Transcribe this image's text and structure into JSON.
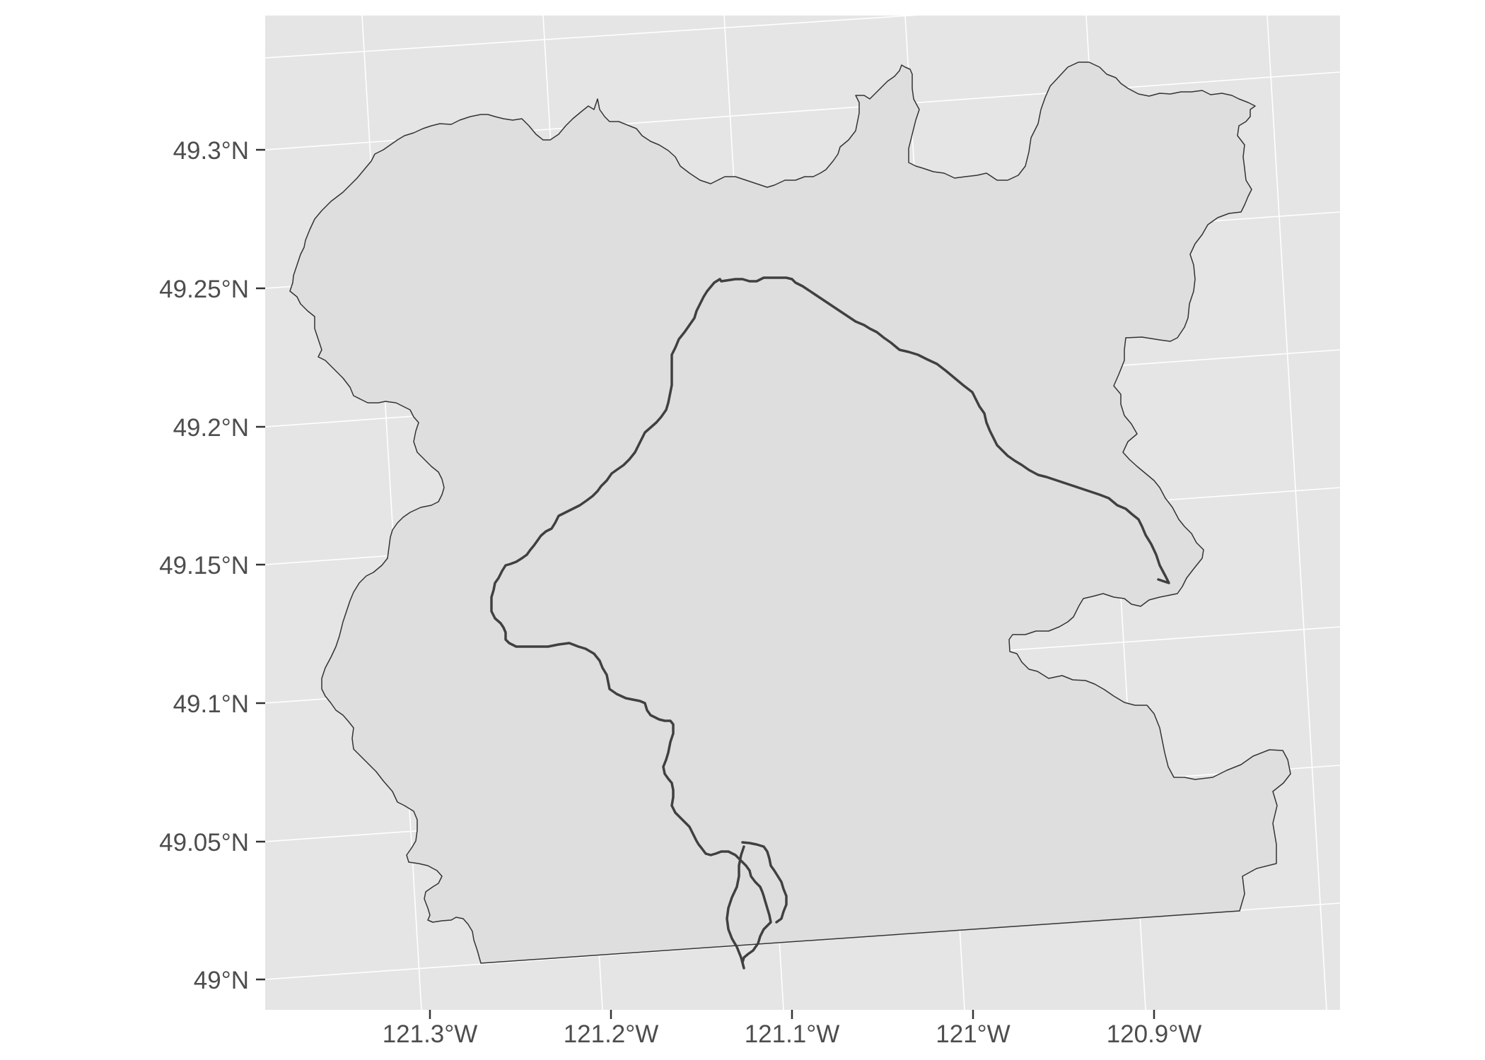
{
  "map": {
    "colors": {
      "panel_background": "#e5e5e5",
      "grid_line": "#ffffff",
      "region_fill": "#dedede",
      "region_outline": "#333333",
      "river_line": "#404040",
      "tick_mark": "#333333",
      "tick_label": "#4d4d4d"
    },
    "y_axis": {
      "ticks": [
        {
          "value": 49.3,
          "label": "49.3°N"
        },
        {
          "value": 49.25,
          "label": "49.25°N"
        },
        {
          "value": 49.2,
          "label": "49.2°N"
        },
        {
          "value": 49.15,
          "label": "49.15°N"
        },
        {
          "value": 49.1,
          "label": "49.1°N"
        },
        {
          "value": 49.05,
          "label": "49.05°N"
        },
        {
          "value": 49.0,
          "label": "49°N"
        }
      ]
    },
    "x_axis": {
      "ticks": [
        {
          "value": -121.3,
          "label": "121.3°W"
        },
        {
          "value": -121.2,
          "label": "121.2°W"
        },
        {
          "value": -121.1,
          "label": "121.1°W"
        },
        {
          "value": -121.0,
          "label": "121°W"
        },
        {
          "value": -120.9,
          "label": "120.9°W"
        }
      ]
    },
    "layers": [
      {
        "name": "watershed-boundary",
        "geometry": "polygon"
      },
      {
        "name": "river",
        "geometry": "line"
      }
    ]
  }
}
